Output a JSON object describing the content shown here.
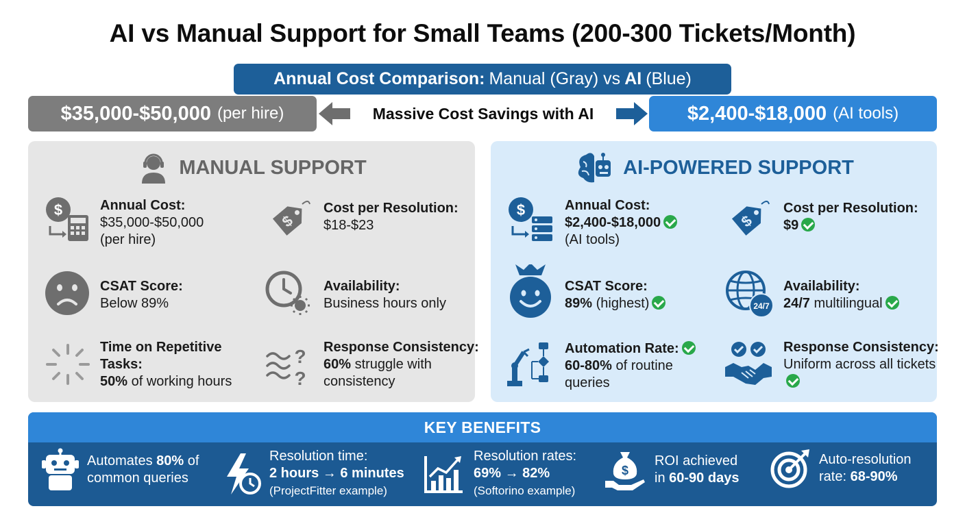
{
  "title": "AI vs Manual Support for Small Teams (200-300 Tickets/Month)",
  "comparison_banner": {
    "label": "Annual Cost Comparison:",
    "text1": "Manual (Gray) vs",
    "ai": "AI",
    "text2": "(Blue)"
  },
  "cost_manual": {
    "value": "$35,000-$50,000",
    "note": "(per hire)"
  },
  "savings": "Massive Cost Savings with AI",
  "cost_ai": {
    "value": "$2,400-$18,000",
    "note": "(AI tools)"
  },
  "manual": {
    "title": "MANUAL SUPPORT",
    "annual_cost": {
      "label": "Annual Cost:",
      "value": "$35,000-$50,000",
      "note": "(per hire)"
    },
    "cost_per_resolution": {
      "label": "Cost per Resolution:",
      "value": "$18-$23"
    },
    "csat": {
      "label": "CSAT Score:",
      "value": "Below 89%"
    },
    "availability": {
      "label": "Availability:",
      "value": "Business hours only"
    },
    "repetitive": {
      "label": "Time on Repetitive Tasks:",
      "bold": "50%",
      "rest": "of working hours"
    },
    "consistency": {
      "label": "Response Consistency:",
      "bold": "60%",
      "rest": "struggle with consistency"
    }
  },
  "ai": {
    "title": "AI-POWERED SUPPORT",
    "annual_cost": {
      "label": "Annual Cost:",
      "value": "$2,400-$18,000",
      "note": "(AI tools)"
    },
    "cost_per_resolution": {
      "label": "Cost per Resolution:",
      "value": "$9"
    },
    "csat": {
      "label": "CSAT Score:",
      "bold": "89%",
      "rest": "(highest)"
    },
    "availability": {
      "label": "Availability:",
      "bold": "24/7",
      "rest": "multilingual"
    },
    "automation": {
      "label": "Automation Rate:",
      "bold": "60-80%",
      "rest": "of routine queries"
    },
    "consistency": {
      "label": "Response Consistency:",
      "value": "Uniform across all tickets"
    },
    "badge_247": "24/7"
  },
  "benefits": {
    "title": "KEY BENEFITS",
    "b1": {
      "pre": "Automates",
      "bold": "80%",
      "post": "of",
      "line2": "common queries"
    },
    "b2": {
      "line1": "Resolution time:",
      "bold": "2 hours → 6 minutes",
      "note": "(ProjectFitter example)"
    },
    "b3": {
      "line1": "Resolution rates:",
      "bold": "69% → 82%",
      "note": "(Softorino example)"
    },
    "b4": {
      "line1": "ROI achieved",
      "pre": "in",
      "bold": "60-90 days"
    },
    "b5": {
      "line1": "Auto-resolution",
      "pre": "rate:",
      "bold": "68-90%"
    }
  },
  "icons": {
    "headset": "headset-person-icon",
    "brain_robot": "brain-robot-icon",
    "dollar_calc": "dollar-calculator-icon",
    "price_tag": "price-tag-icon",
    "sad_face": "sad-face-icon",
    "clock_sun": "clock-sun-icon",
    "spinner": "loading-spinner-icon",
    "waves_question": "waves-question-icon",
    "dollar_server": "dollar-server-icon",
    "crown_smile": "crown-smile-icon",
    "globe": "globe-247-icon",
    "robot_arm": "robot-arm-flow-icon",
    "handshake": "handshake-check-icon",
    "robot": "robot-icon",
    "bolt_clock": "lightning-clock-icon",
    "chart_up": "chart-up-icon",
    "money_hand": "money-bag-hand-icon",
    "target": "target-icon"
  },
  "colors": {
    "gray": "#7d7d7d",
    "blue": "#2f86d8",
    "navy": "#1d5f99",
    "green": "#29a84a"
  }
}
